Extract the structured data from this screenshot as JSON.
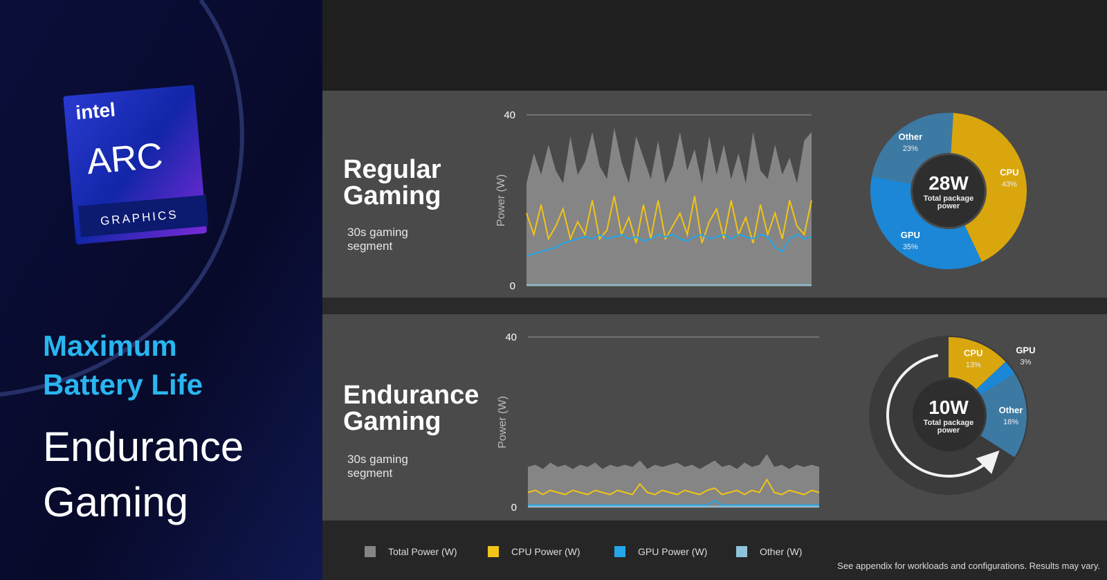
{
  "sidebar": {
    "brand": "intel",
    "product": "ARC",
    "product_line": "GRAPHICS",
    "headline": "Maximum Battery Life",
    "subtitle": "Endurance Gaming"
  },
  "sections": [
    {
      "title": "Regular Gaming",
      "caption": "30s gaming segment"
    },
    {
      "title": "Endurance Gaming",
      "caption": "30s gaming segment"
    }
  ],
  "chart_data": [
    {
      "type": "line",
      "y_label": "Power (W)",
      "ylim": [
        0,
        40
      ],
      "yticks": [
        0,
        40
      ],
      "series": [
        {
          "name": "Total Power (W)",
          "color": "#858585",
          "area": true,
          "values": [
            24,
            31,
            26,
            33,
            27,
            24,
            35,
            26,
            29,
            36,
            28,
            25,
            37,
            29,
            24,
            35,
            30,
            25,
            34,
            24,
            28,
            36,
            27,
            32,
            24,
            35,
            26,
            33,
            25,
            31,
            24,
            36,
            27,
            25,
            33,
            26,
            30,
            24,
            34,
            36
          ]
        },
        {
          "name": "CPU Power (W)",
          "color": "#f2c417",
          "values": [
            17,
            12,
            19,
            11,
            14,
            18,
            11,
            15,
            12,
            20,
            11,
            13,
            21,
            12,
            16,
            10,
            19,
            11,
            20,
            11,
            14,
            17,
            12,
            21,
            10,
            15,
            18,
            11,
            20,
            12,
            16,
            10,
            19,
            12,
            17,
            11,
            20,
            14,
            12,
            20
          ]
        },
        {
          "name": "GPU Power (W)",
          "color": "#22a7e8",
          "values": [
            7,
            7.5,
            8,
            8.5,
            9,
            10,
            10.5,
            11,
            11.5,
            11,
            12,
            11,
            11.5,
            12,
            11,
            11.5,
            10.5,
            11,
            12,
            11.5,
            12,
            11,
            10.5,
            11.5,
            12,
            11,
            11.5,
            12,
            11,
            12,
            11.5,
            11,
            12,
            11.5,
            9,
            8,
            11,
            12,
            11,
            11.5
          ]
        },
        {
          "name": "Other (W)",
          "color": "#8fc3dc",
          "values": [
            0.2,
            0.2,
            0.2,
            0.2,
            0.2,
            0.2,
            0.2,
            0.2,
            0.2,
            0.2,
            0.2,
            0.2,
            0.2,
            0.2,
            0.2,
            0.2,
            0.2,
            0.2,
            0.2,
            0.2,
            0.2,
            0.2,
            0.2,
            0.2,
            0.2,
            0.2,
            0.2,
            0.2,
            0.2,
            0.2,
            0.2,
            0.2,
            0.2,
            0.2,
            0.2,
            0.2,
            0.2,
            0.2,
            0.2,
            0.2
          ]
        }
      ]
    },
    {
      "type": "pie",
      "categories": [
        "CPU",
        "GPU",
        "Other"
      ],
      "values": [
        43,
        35,
        23
      ],
      "value_labels": [
        "43%",
        "35%",
        "23%"
      ],
      "colors": [
        "#d9a60d",
        "#1b87d6",
        "#3d7aa3"
      ],
      "center_label": "28W",
      "center_caption": "Total package power"
    },
    {
      "type": "line",
      "y_label": "Power (W)",
      "ylim": [
        0,
        40
      ],
      "yticks": [
        0,
        40
      ],
      "series": [
        {
          "name": "Total Power (W)",
          "color": "#858585",
          "area": true,
          "values": [
            9.5,
            10,
            9,
            10.5,
            9.5,
            10,
            9,
            10,
            9.5,
            10.5,
            9,
            10,
            9.5,
            10,
            9.5,
            11,
            9,
            10,
            9.5,
            10,
            10.5,
            9.5,
            10,
            9,
            10,
            11,
            9.5,
            10,
            9,
            10.5,
            9.5,
            10,
            12.5,
            9.5,
            10,
            9,
            10,
            9.5,
            10,
            9.5
          ]
        },
        {
          "name": "CPU Power (W)",
          "color": "#f2c417",
          "values": [
            3.5,
            4,
            3,
            4,
            3.5,
            3,
            4,
            3.5,
            3,
            4,
            3.5,
            3,
            4,
            3.5,
            3,
            5.5,
            3.5,
            3,
            4,
            3.5,
            3,
            4,
            3.5,
            3,
            4,
            4.5,
            3,
            3.5,
            4,
            3,
            4,
            3.5,
            6.5,
            3.5,
            3,
            4,
            3.5,
            3,
            4,
            3.5
          ]
        },
        {
          "name": "GPU Power (W)",
          "color": "#22a7e8",
          "values": [
            0.5,
            0.5,
            0.5,
            0.5,
            0.5,
            0.5,
            0.5,
            0.5,
            0.5,
            0.5,
            0.5,
            0.5,
            0.5,
            0.5,
            0.5,
            0.5,
            0.5,
            0.5,
            0.5,
            0.5,
            0.5,
            0.5,
            0.5,
            0.5,
            0.5,
            1.5,
            0.5,
            0.5,
            0.5,
            0.5,
            0.5,
            0.5,
            0.5,
            0.5,
            0.5,
            0.5,
            0.5,
            0.5,
            0.5,
            0.5
          ]
        },
        {
          "name": "Other (W)",
          "color": "#8fc3dc",
          "values": [
            0.2,
            0.2,
            0.2,
            0.2,
            0.2,
            0.2,
            0.2,
            0.2,
            0.2,
            0.2,
            0.2,
            0.2,
            0.2,
            0.2,
            0.2,
            0.2,
            0.2,
            0.2,
            0.2,
            0.2,
            0.2,
            0.2,
            0.2,
            0.2,
            0.2,
            0.2,
            0.2,
            0.2,
            0.2,
            0.2,
            0.2,
            0.2,
            0.2,
            0.2,
            0.2,
            0.2,
            0.2,
            0.2,
            0.2,
            0.2
          ]
        }
      ]
    },
    {
      "type": "pie",
      "categories": [
        "CPU",
        "GPU",
        "Other"
      ],
      "values": [
        13,
        3,
        18
      ],
      "value_labels": [
        "13%",
        "3%",
        "18%"
      ],
      "colors": [
        "#d9a60d",
        "#1b87d6",
        "#3d7aa3"
      ],
      "center_label": "10W",
      "center_caption": "Total package power"
    }
  ],
  "footnote": "See appendix for workloads and configurations. Results may vary."
}
